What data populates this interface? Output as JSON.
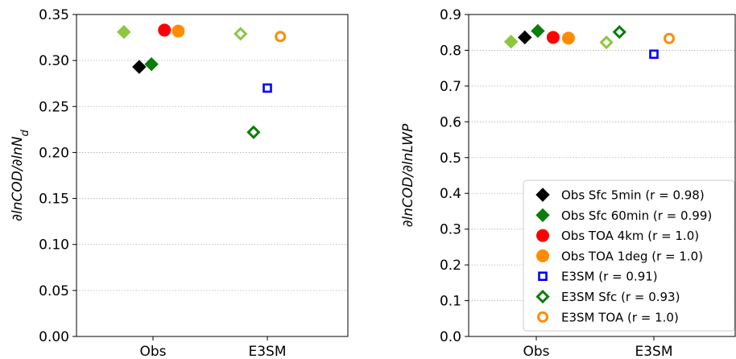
{
  "chart_data": [
    {
      "type": "scatter",
      "ylabel": "∂lnCOD/∂lnN_d",
      "ylim": [
        0,
        0.35
      ],
      "yticks": [
        "0.00",
        "0.05",
        "0.10",
        "0.15",
        "0.20",
        "0.25",
        "0.30",
        "0.35"
      ],
      "categories": [
        "Obs",
        "E3SM"
      ],
      "grid": "horizontal",
      "series": [
        {
          "name": "Obs Sfc 5min (r = 0.98)",
          "color": "#000000",
          "marker": "diamond-filled",
          "points": [
            {
              "category": "Obs",
              "offset": -0.18,
              "y": 0.293
            }
          ]
        },
        {
          "name": "Obs Sfc 60min (r = 0.99)",
          "color": "#0a7d0a",
          "marker": "diamond-filled",
          "points": [
            {
              "category": "Obs",
              "offset": -0.02,
              "y": 0.296
            }
          ]
        },
        {
          "name": "Obs Sfc 60min light",
          "color": "#8dc63f",
          "marker": "diamond-filled",
          "points": [
            {
              "category": "Obs",
              "offset": -0.38,
              "y": 0.331
            }
          ]
        },
        {
          "name": "Obs TOA 4km (r = 1.0)",
          "color": "#ff0000",
          "marker": "circle-filled",
          "points": [
            {
              "category": "Obs",
              "offset": 0.15,
              "y": 0.333
            }
          ]
        },
        {
          "name": "Obs TOA 1deg (r = 1.0)",
          "color": "#ff8c00",
          "marker": "circle-filled",
          "points": [
            {
              "category": "Obs",
              "offset": 0.33,
              "y": 0.332
            }
          ]
        },
        {
          "name": "E3SM (r = 0.91)",
          "color": "#0000ff",
          "marker": "square-open",
          "points": [
            {
              "category": "E3SM",
              "offset": 0.0,
              "y": 0.27
            }
          ]
        },
        {
          "name": "E3SM Sfc (r = 0.93)",
          "color": "#0a7d0a",
          "marker": "diamond-open",
          "points": [
            {
              "category": "E3SM",
              "offset": -0.18,
              "y": 0.222
            }
          ]
        },
        {
          "name": "E3SM Sfc light",
          "color": "#8dc63f",
          "marker": "diamond-open",
          "points": [
            {
              "category": "E3SM",
              "offset": -0.35,
              "y": 0.329
            }
          ]
        },
        {
          "name": "E3SM TOA (r = 1.0)",
          "color": "#ff8c00",
          "marker": "circle-open",
          "points": [
            {
              "category": "E3SM",
              "offset": 0.17,
              "y": 0.326
            }
          ]
        }
      ]
    },
    {
      "type": "scatter",
      "ylabel": "∂lnCOD/∂lnLWP",
      "ylim": [
        0,
        0.9
      ],
      "yticks": [
        "0.0",
        "0.1",
        "0.2",
        "0.3",
        "0.4",
        "0.5",
        "0.6",
        "0.7",
        "0.8",
        "0.9"
      ],
      "categories": [
        "Obs",
        "E3SM"
      ],
      "grid": "horizontal",
      "legend_position": "lower-right",
      "series": [
        {
          "name": "Obs Sfc 5min (r = 0.98)",
          "color": "#000000",
          "marker": "diamond-filled",
          "points": [
            {
              "category": "Obs",
              "offset": -0.15,
              "y": 0.836
            }
          ]
        },
        {
          "name": "Obs Sfc 60min (r = 0.99)",
          "color": "#0a7d0a",
          "marker": "diamond-filled",
          "points": [
            {
              "category": "Obs",
              "offset": 0.02,
              "y": 0.854
            }
          ]
        },
        {
          "name": "Obs Sfc 60min light",
          "color": "#8dc63f",
          "marker": "diamond-filled",
          "points": [
            {
              "category": "Obs",
              "offset": -0.33,
              "y": 0.824
            }
          ]
        },
        {
          "name": "Obs TOA 4km (r = 1.0)",
          "color": "#ff0000",
          "marker": "circle-filled",
          "points": [
            {
              "category": "Obs",
              "offset": 0.22,
              "y": 0.836
            }
          ]
        },
        {
          "name": "Obs TOA 1deg (r = 1.0)",
          "color": "#ff8c00",
          "marker": "circle-filled",
          "points": [
            {
              "category": "Obs",
              "offset": 0.42,
              "y": 0.834
            }
          ]
        },
        {
          "name": "E3SM (r = 0.91)",
          "color": "#0000ff",
          "marker": "square-open",
          "points": [
            {
              "category": "E3SM",
              "offset": 0.0,
              "y": 0.789
            }
          ]
        },
        {
          "name": "E3SM Sfc (r = 0.93)",
          "color": "#0a7d0a",
          "marker": "diamond-open",
          "points": [
            {
              "category": "E3SM",
              "offset": -0.45,
              "y": 0.851
            }
          ]
        },
        {
          "name": "E3SM Sfc light",
          "color": "#8dc63f",
          "marker": "diamond-open",
          "points": [
            {
              "category": "E3SM",
              "offset": -0.62,
              "y": 0.822
            }
          ]
        },
        {
          "name": "E3SM TOA (r = 1.0)",
          "color": "#ff8c00",
          "marker": "circle-open",
          "points": [
            {
              "category": "E3SM",
              "offset": 0.2,
              "y": 0.833
            }
          ]
        }
      ],
      "legend": [
        {
          "label": "Obs Sfc 5min (r = 0.98)",
          "color": "#000000",
          "marker": "diamond-filled"
        },
        {
          "label": "Obs Sfc 60min (r = 0.99)",
          "color": "#0a7d0a",
          "marker": "diamond-filled"
        },
        {
          "label": "Obs TOA 4km (r = 1.0)",
          "color": "#ff0000",
          "marker": "circle-filled"
        },
        {
          "label": "Obs TOA 1deg (r = 1.0)",
          "color": "#ff8c00",
          "marker": "circle-filled"
        },
        {
          "label": "E3SM (r = 0.91)",
          "color": "#0000ff",
          "marker": "square-open"
        },
        {
          "label": "E3SM Sfc (r = 0.93)",
          "color": "#0a7d0a",
          "marker": "diamond-open"
        },
        {
          "label": "E3SM TOA (r = 1.0)",
          "color": "#ff8c00",
          "marker": "circle-open"
        }
      ]
    }
  ]
}
